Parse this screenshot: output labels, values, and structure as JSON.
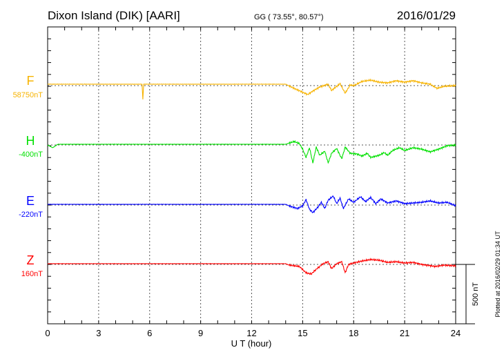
{
  "header": {
    "station": "Dixon Island (DIK)  [AARI]",
    "coords": "GG ( 73.55°,  80.57°)",
    "date": "2016/01/29"
  },
  "footer": {
    "plotted": "Plotted at 2016/02/29 01:34 UT",
    "scale_label": "500 nT"
  },
  "chart_data": {
    "type": "line",
    "title": "Dixon Island (DIK) [AARI] 2016/01/29",
    "xlabel": "U T (hour)",
    "xlim": [
      0,
      24
    ],
    "xticks": [
      "0",
      "3",
      "6",
      "9",
      "12",
      "15",
      "18",
      "21",
      "24"
    ],
    "scale_bar_nT": 500,
    "grid": "dotted verticals every 3 h, dotted baselines per component",
    "series": [
      {
        "name": "F",
        "baseline_label": "58750nT",
        "color": "#f7b300",
        "points": [
          [
            0,
            12
          ],
          [
            5.55,
            12
          ],
          [
            5.6,
            -115
          ],
          [
            5.65,
            12
          ],
          [
            14,
            12
          ],
          [
            14.5,
            -23
          ],
          [
            15.3,
            -75
          ],
          [
            15.6,
            -46
          ],
          [
            16,
            -12
          ],
          [
            16.5,
            12
          ],
          [
            16.7,
            -41
          ],
          [
            17.2,
            17
          ],
          [
            17.5,
            -64
          ],
          [
            17.8,
            6
          ],
          [
            18,
            0
          ],
          [
            18.5,
            35
          ],
          [
            19,
            46
          ],
          [
            19.5,
            29
          ],
          [
            20,
            23
          ],
          [
            20.5,
            41
          ],
          [
            21,
            29
          ],
          [
            21.5,
            41
          ],
          [
            22,
            23
          ],
          [
            22.5,
            12
          ],
          [
            22.9,
            -23
          ],
          [
            23.3,
            -6
          ],
          [
            24,
            0
          ]
        ]
      },
      {
        "name": "H",
        "baseline_label": "-400nT",
        "color": "#00e000",
        "points": [
          [
            0,
            0
          ],
          [
            0.3,
            -23
          ],
          [
            0.6,
            6
          ],
          [
            14,
            6
          ],
          [
            14.5,
            29
          ],
          [
            14.8,
            12
          ],
          [
            15,
            -35
          ],
          [
            15.2,
            -105
          ],
          [
            15.4,
            -23
          ],
          [
            15.6,
            -151
          ],
          [
            15.8,
            -17
          ],
          [
            16,
            -87
          ],
          [
            16.3,
            -52
          ],
          [
            16.5,
            -151
          ],
          [
            16.7,
            -70
          ],
          [
            17,
            -29
          ],
          [
            17.3,
            -116
          ],
          [
            17.5,
            -17
          ],
          [
            17.8,
            -70
          ],
          [
            18.2,
            -76
          ],
          [
            18.5,
            -93
          ],
          [
            18.8,
            -70
          ],
          [
            19,
            -105
          ],
          [
            19.5,
            -87
          ],
          [
            19.8,
            -64
          ],
          [
            20,
            -87
          ],
          [
            20.3,
            -46
          ],
          [
            20.7,
            -23
          ],
          [
            21,
            -46
          ],
          [
            21.5,
            -23
          ],
          [
            22,
            -35
          ],
          [
            22.5,
            -58
          ],
          [
            23,
            -35
          ],
          [
            23.5,
            -6
          ],
          [
            24,
            0
          ]
        ]
      },
      {
        "name": "E",
        "baseline_label": "-220nT",
        "color": "#0000ff",
        "points": [
          [
            0,
            6
          ],
          [
            14,
            6
          ],
          [
            14.3,
            -12
          ],
          [
            14.7,
            -29
          ],
          [
            15,
            -6
          ],
          [
            15.2,
            46
          ],
          [
            15.4,
            -35
          ],
          [
            15.6,
            -64
          ],
          [
            15.9,
            -17
          ],
          [
            16.1,
            23
          ],
          [
            16.3,
            -29
          ],
          [
            16.5,
            41
          ],
          [
            16.8,
            76
          ],
          [
            17,
            12
          ],
          [
            17.2,
            58
          ],
          [
            17.4,
            -29
          ],
          [
            17.7,
            52
          ],
          [
            18,
            23
          ],
          [
            18.4,
            70
          ],
          [
            18.7,
            29
          ],
          [
            19,
            64
          ],
          [
            19.3,
            12
          ],
          [
            19.6,
            52
          ],
          [
            20,
            17
          ],
          [
            20.5,
            35
          ],
          [
            21,
            12
          ],
          [
            21.5,
            17
          ],
          [
            22,
            23
          ],
          [
            22.5,
            35
          ],
          [
            23,
            17
          ],
          [
            23.5,
            23
          ],
          [
            24,
            -6
          ]
        ]
      },
      {
        "name": "Z",
        "baseline_label": "160nT",
        "color": "#ff0000",
        "points": [
          [
            0,
            6
          ],
          [
            14,
            6
          ],
          [
            14.2,
            -6
          ],
          [
            14.8,
            -17
          ],
          [
            15.2,
            -70
          ],
          [
            15.5,
            -81
          ],
          [
            15.8,
            -41
          ],
          [
            16.2,
            6
          ],
          [
            16.5,
            23
          ],
          [
            16.7,
            -35
          ],
          [
            17,
            6
          ],
          [
            17.3,
            23
          ],
          [
            17.5,
            -70
          ],
          [
            17.7,
            0
          ],
          [
            18,
            12
          ],
          [
            18.5,
            29
          ],
          [
            19,
            41
          ],
          [
            19.5,
            35
          ],
          [
            20,
            17
          ],
          [
            20.5,
            23
          ],
          [
            21,
            12
          ],
          [
            21.5,
            17
          ],
          [
            22,
            0
          ],
          [
            22.8,
            -17
          ],
          [
            23.3,
            -6
          ],
          [
            24,
            -12
          ]
        ]
      }
    ]
  }
}
